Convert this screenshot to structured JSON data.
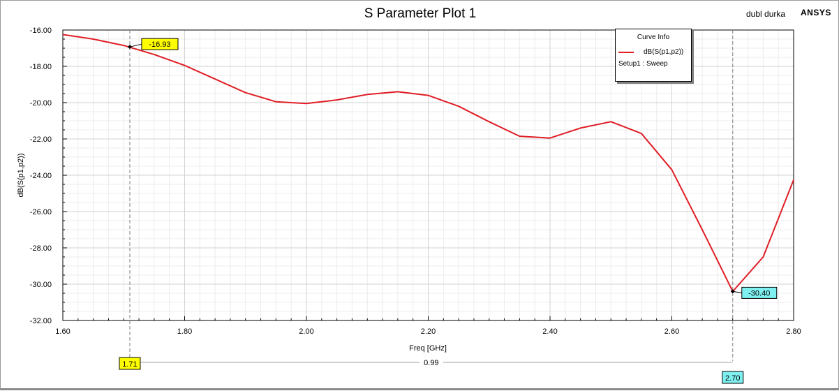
{
  "window": {
    "project_name": "dubl durka",
    "brand": "ANSYS"
  },
  "colors": {
    "curve": "#e01e26",
    "marker_1": "#ffff00",
    "marker_2": "#7ff0f0",
    "grid_major": "#d2d2d2",
    "grid_minor": "#ececec"
  },
  "legend": {
    "header": "Curve Info",
    "series_label": "dB(S(p1,p2))",
    "setup_label": "Setup1 : Sweep"
  },
  "markers": {
    "m1": {
      "x": 1.71,
      "y": -16.93,
      "value_label": "-16.93",
      "x_label": "1.71"
    },
    "m2": {
      "x": 2.7,
      "y": -30.4,
      "value_label": "-30.40",
      "x_label": "2.70"
    },
    "delta_label": "0.99"
  },
  "chart_data": {
    "type": "line",
    "title": "S Parameter Plot 1",
    "xlabel": "Freq [GHz]",
    "ylabel": "dB(S(p1,p2))",
    "xlim": [
      1.6,
      2.8
    ],
    "ylim": [
      -32.0,
      -16.0
    ],
    "x_ticks": [
      "1.60",
      "1.80",
      "2.00",
      "2.20",
      "2.40",
      "2.60",
      "2.80"
    ],
    "y_ticks": [
      "-16.00",
      "-18.00",
      "-20.00",
      "-22.00",
      "-24.00",
      "-26.00",
      "-28.00",
      "-30.00",
      "-32.00"
    ],
    "grid": true,
    "legend_position": "top-right",
    "series": [
      {
        "name": "dB(S(p1,p2))",
        "x": [
          1.6,
          1.65,
          1.7,
          1.75,
          1.8,
          1.85,
          1.9,
          1.95,
          2.0,
          2.05,
          2.1,
          2.15,
          2.2,
          2.25,
          2.3,
          2.35,
          2.4,
          2.45,
          2.5,
          2.55,
          2.6,
          2.65,
          2.7,
          2.75,
          2.8
        ],
        "y": [
          -16.25,
          -16.5,
          -16.85,
          -17.35,
          -17.95,
          -18.7,
          -19.45,
          -19.95,
          -20.05,
          -19.85,
          -19.55,
          -19.4,
          -19.6,
          -20.2,
          -21.05,
          -21.85,
          -21.95,
          -21.4,
          -21.05,
          -21.7,
          -23.7,
          -27.0,
          -30.4,
          -28.5,
          -24.25
        ]
      }
    ]
  }
}
